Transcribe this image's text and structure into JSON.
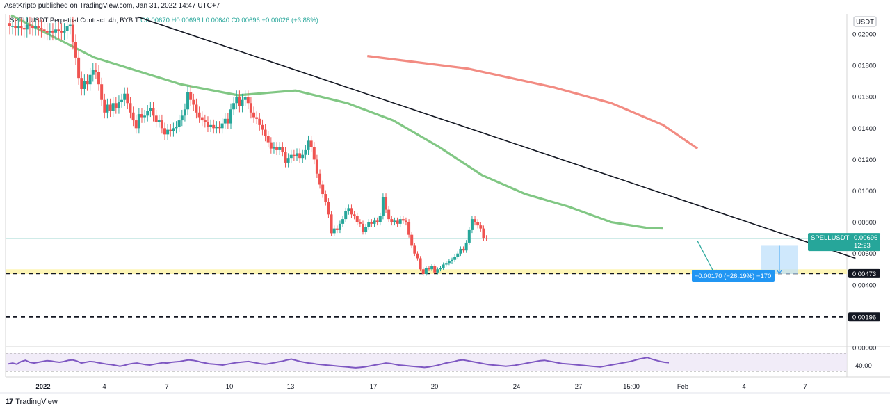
{
  "header": {
    "publisher": "AsetKripto published on TradingView.com, Jan 31, 2022 14:47 UTC+7"
  },
  "symbol": {
    "title": "SPELLUSDT Perpetual Contract, 4h, BYBIT",
    "ohlc": "O0.00670 H0.00696 L0.00640 C0.00696 +0.00026 (+3.88%)"
  },
  "axis": {
    "currency": "USDT",
    "price_ticks": [
      "0.02000",
      "0.01800",
      "0.01600",
      "0.01400",
      "0.01200",
      "0.01000",
      "0.00800",
      "0.00600",
      "0.00400",
      "0.00000"
    ],
    "time_ticks": [
      "2022",
      "4",
      "7",
      "10",
      "13",
      "17",
      "20",
      "24",
      "27",
      "15:00",
      "Feb",
      "4",
      "7"
    ]
  },
  "price_tags": {
    "current_symbol": "SPELLUSDT",
    "current_price": "0.00696",
    "countdown": "12:23",
    "level_1": "0.00473",
    "level_2": "0.00196"
  },
  "measure": {
    "label": "−0.00170 (−26.19%) −170"
  },
  "rsi": {
    "level": "40.00"
  },
  "footer": {
    "brand": "TradingView",
    "logo": "17"
  },
  "colors": {
    "up": "#26a69a",
    "down": "#ef5350",
    "ma_fast": "#81c784",
    "ma_slow": "#f28b82",
    "rsi": "#7e57c2",
    "support_zone": "#fdf5b6",
    "measure_fill": "#bbdefb",
    "tag_bg": "#26a69a",
    "measure_bg": "#2196f3"
  },
  "chart_data": {
    "type": "candlestick",
    "symbol": "SPELLUSDT",
    "interval": "4h",
    "exchange": "BYBIT",
    "ylim": [
      0,
      0.0212
    ],
    "yticks": [
      0.02,
      0.018,
      0.016,
      0.014,
      0.012,
      0.01,
      0.008,
      0.006,
      0.004,
      0
    ],
    "xticks": [
      "2022",
      "4",
      "7",
      "10",
      "13",
      "17",
      "20",
      "24",
      "27",
      "15:00",
      "Feb",
      "4",
      "7"
    ],
    "close": [
      0.0205,
      0.0205,
      0.0204,
      0.0205,
      0.0204,
      0.0203,
      0.0206,
      0.0205,
      0.0204,
      0.0205,
      0.0204,
      0.0203,
      0.0202,
      0.0201,
      0.0202,
      0.0201,
      0.0203,
      0.0202,
      0.0201,
      0.0202,
      0.0205,
      0.0206,
      0.0195,
      0.0185,
      0.0172,
      0.0165,
      0.017,
      0.0168,
      0.0174,
      0.0177,
      0.0176,
      0.0168,
      0.0158,
      0.015,
      0.0155,
      0.0151,
      0.0156,
      0.0153,
      0.0157,
      0.0158,
      0.0162,
      0.0156,
      0.015,
      0.0145,
      0.014,
      0.0149,
      0.0147,
      0.0148,
      0.0151,
      0.0153,
      0.0148,
      0.0144,
      0.0145,
      0.014,
      0.0136,
      0.0139,
      0.0138,
      0.014,
      0.0141,
      0.0145,
      0.0148,
      0.0152,
      0.0163,
      0.0158,
      0.0155,
      0.015,
      0.0147,
      0.0145,
      0.0144,
      0.0141,
      0.0142,
      0.014,
      0.0141,
      0.014,
      0.0143,
      0.0146,
      0.0143,
      0.0152,
      0.0156,
      0.016,
      0.0154,
      0.0158,
      0.016,
      0.0156,
      0.015,
      0.0147,
      0.0146,
      0.0142,
      0.0139,
      0.0135,
      0.0131,
      0.0127,
      0.0128,
      0.0126,
      0.0128,
      0.0125,
      0.0118,
      0.0121,
      0.0123,
      0.0122,
      0.0124,
      0.0121,
      0.0123,
      0.0126,
      0.0132,
      0.0128,
      0.012,
      0.0111,
      0.0104,
      0.0098,
      0.0093,
      0.0085,
      0.0073,
      0.0076,
      0.0075,
      0.0079,
      0.0082,
      0.0087,
      0.0089,
      0.0085,
      0.0084,
      0.008,
      0.0079,
      0.0074,
      0.0077,
      0.008,
      0.0079,
      0.0081,
      0.008,
      0.0084,
      0.0096,
      0.0088,
      0.0082,
      0.008,
      0.0081,
      0.0079,
      0.0082,
      0.0081,
      0.008,
      0.0072,
      0.0065,
      0.006,
      0.0057,
      0.005,
      0.0047,
      0.0051,
      0.005,
      0.0052,
      0.0048,
      0.005,
      0.0051,
      0.0053,
      0.0054,
      0.0055,
      0.0056,
      0.0058,
      0.006,
      0.0063,
      0.0062,
      0.0067,
      0.0075,
      0.0082,
      0.008,
      0.0078,
      0.0076,
      0.007,
      0.00696
    ],
    "ma_fast_points": [
      [
        1,
        0.0212
      ],
      [
        30,
        0.0185
      ],
      [
        60,
        0.0168
      ],
      [
        80,
        0.0161
      ],
      [
        100,
        0.0164
      ],
      [
        118,
        0.0156
      ],
      [
        134,
        0.0145
      ],
      [
        150,
        0.0128
      ],
      [
        165,
        0.011
      ],
      [
        180,
        0.0098
      ],
      [
        195,
        0.009
      ],
      [
        210,
        0.008
      ],
      [
        222,
        0.00765
      ],
      [
        228,
        0.0076
      ]
    ],
    "ma_slow_points": [
      [
        125,
        0.0186
      ],
      [
        160,
        0.0178
      ],
      [
        190,
        0.0166
      ],
      [
        210,
        0.0156
      ],
      [
        228,
        0.0142
      ],
      [
        240,
        0.0127
      ]
    ],
    "trendline": {
      "from": [
        45,
        0.0211
      ],
      "to": [
        295,
        0.0057
      ]
    },
    "support_zone": [
      0.0047,
      0.005
    ],
    "levels": [
      0.00473,
      0.00196
    ],
    "current_price": 0.00696,
    "projection": {
      "from": [
        240,
        0.0068
      ],
      "to": [
        246,
        0.0047
      ]
    },
    "measure_box": {
      "x_from": 262,
      "x_to": 275,
      "top": 0.0065,
      "bottom": 0.0047,
      "change": -0.0017,
      "change_pct": -26.19,
      "ticks": -170
    },
    "rsi": {
      "range": [
        20,
        80
      ],
      "upper": 70,
      "lower": 30,
      "mid": 40,
      "values": [
        46,
        48,
        45,
        52,
        55,
        50,
        48,
        50,
        52,
        54,
        53,
        51,
        50,
        52,
        55,
        56,
        53,
        48,
        50,
        52,
        51,
        49,
        47,
        45,
        44,
        42,
        40,
        42,
        45,
        47,
        48,
        46,
        44,
        43,
        45,
        47,
        49,
        48,
        50,
        51,
        52,
        54,
        56,
        55,
        53,
        50,
        48,
        46,
        45,
        44,
        43,
        45,
        47,
        49,
        50,
        51,
        52,
        50,
        48,
        46,
        45,
        47,
        49,
        51,
        53,
        56,
        58,
        55,
        52,
        50,
        48,
        47,
        45,
        44,
        43,
        42,
        41,
        40,
        39,
        38,
        37,
        36,
        37,
        38,
        40,
        42,
        44,
        46,
        48,
        47,
        45,
        43,
        42,
        41,
        40,
        39,
        38,
        37,
        38,
        40,
        42,
        45,
        48,
        50,
        52,
        55,
        56,
        54,
        52,
        50,
        48,
        46,
        44,
        43,
        42,
        41,
        40,
        41,
        42,
        44,
        46,
        48,
        50,
        52,
        54,
        55,
        53,
        51,
        49,
        47,
        46,
        45,
        44,
        43,
        42,
        41,
        40,
        39,
        38,
        40,
        42,
        44,
        46,
        48,
        50,
        52,
        55,
        58,
        60,
        62,
        58,
        55,
        52,
        50,
        49
      ]
    }
  }
}
